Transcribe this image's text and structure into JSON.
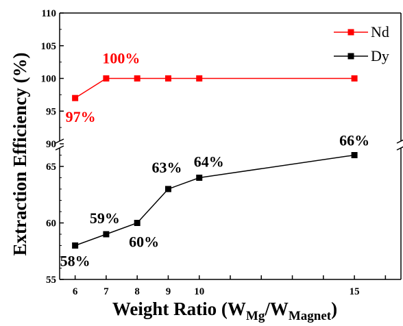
{
  "chart_data": {
    "type": "line",
    "xlabel": {
      "main": "Weight Ratio (W",
      "sub1": "Mg",
      "mid": "/W",
      "sub2": "Magnet",
      "end": ")"
    },
    "ylabel": "Extraction Efficiency (%)",
    "broken_y_axis": true,
    "ylim_upper": [
      90,
      110
    ],
    "ylim_lower": [
      55,
      67
    ],
    "xlim": [
      5.5,
      16.5
    ],
    "x_ticks": [
      6,
      7,
      8,
      9,
      10,
      15
    ],
    "y_ticks_upper": [
      90,
      95,
      100,
      105,
      110
    ],
    "y_ticks_lower": [
      55,
      60,
      65
    ],
    "legend_position": "top-right",
    "series": [
      {
        "name": "Nd",
        "color": "#ff0000",
        "x": [
          6,
          7,
          8,
          9,
          10,
          15
        ],
        "y": [
          97,
          100,
          100,
          100,
          100,
          100
        ]
      },
      {
        "name": "Dy",
        "color": "#000000",
        "x": [
          6,
          7,
          8,
          9,
          10,
          15
        ],
        "y": [
          58,
          59,
          60,
          63,
          64,
          66
        ]
      }
    ],
    "annotations": [
      {
        "text": "97%",
        "series": "Nd",
        "x": 6,
        "y": 97,
        "color": "#ff0000"
      },
      {
        "text": "100%",
        "series": "Nd",
        "x": 7,
        "y": 100,
        "color": "#ff0000"
      },
      {
        "text": "58%",
        "series": "Dy",
        "x": 6,
        "y": 58,
        "color": "#000000"
      },
      {
        "text": "59%",
        "series": "Dy",
        "x": 7,
        "y": 59,
        "color": "#000000"
      },
      {
        "text": "60%",
        "series": "Dy",
        "x": 8,
        "y": 60,
        "color": "#000000"
      },
      {
        "text": "63%",
        "series": "Dy",
        "x": 9,
        "y": 63,
        "color": "#000000"
      },
      {
        "text": "64%",
        "series": "Dy",
        "x": 10,
        "y": 64,
        "color": "#000000"
      },
      {
        "text": "66%",
        "series": "Dy",
        "x": 15,
        "y": 66,
        "color": "#000000"
      }
    ]
  }
}
